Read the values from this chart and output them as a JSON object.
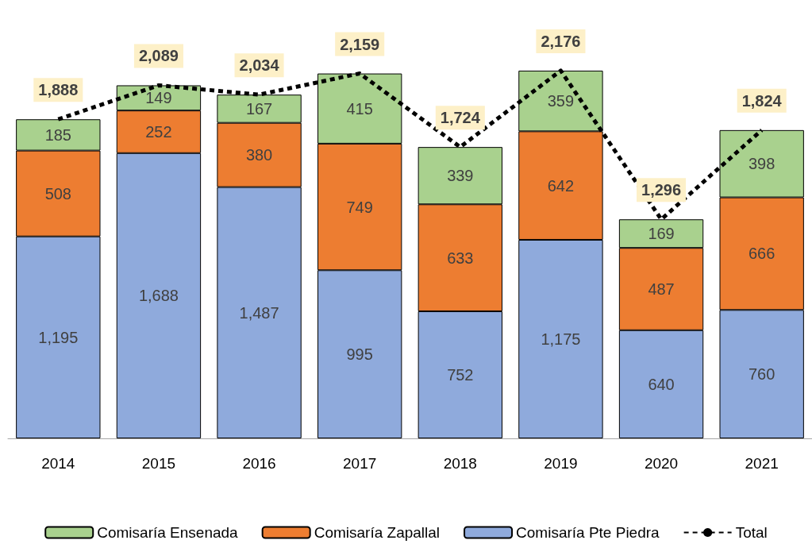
{
  "chart_data": {
    "type": "bar",
    "stacked": true,
    "categories": [
      "2014",
      "2015",
      "2016",
      "2017",
      "2018",
      "2019",
      "2020",
      "2021"
    ],
    "series": [
      {
        "name": "Comisaría Pte Piedra",
        "color": "#8faadc",
        "values": [
          1195,
          1688,
          1487,
          995,
          752,
          1175,
          640,
          760
        ],
        "value_labels": [
          "1,195",
          "1,688",
          "1,487",
          "995",
          "752",
          "1,175",
          "640",
          "760"
        ]
      },
      {
        "name": "Comisaría Zapallal",
        "color": "#ed7d31",
        "values": [
          508,
          252,
          380,
          749,
          633,
          642,
          487,
          666
        ]
      },
      {
        "name": "Comisaría Ensenada",
        "color": "#a9d18e",
        "values": [
          185,
          149,
          167,
          415,
          339,
          359,
          169,
          398
        ]
      },
      {
        "name": "Total",
        "type": "line",
        "color": "#000000",
        "line_style": "dashed",
        "marker": "none",
        "values": [
          1888,
          2089,
          2034,
          2159,
          1724,
          2176,
          1296,
          1824
        ],
        "value_labels": [
          "1,888",
          "2,089",
          "2,034",
          "2,159",
          "1,724",
          "2,176",
          "1,296",
          "1,824"
        ]
      }
    ],
    "data_labels": true,
    "legend": "bottom",
    "grid": false,
    "tick_labels": "x"
  }
}
